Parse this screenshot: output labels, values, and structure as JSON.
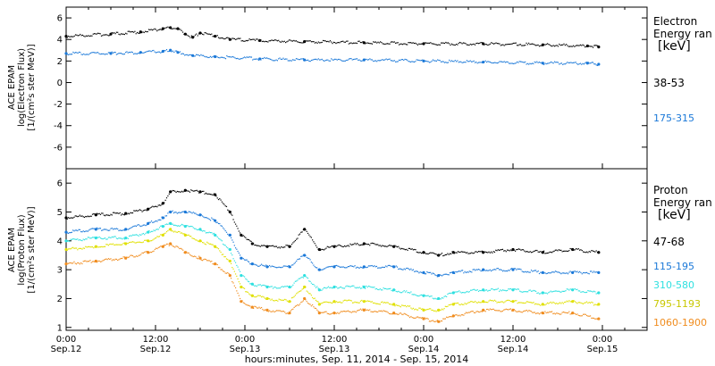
{
  "x_axis": {
    "title": "hours:minutes, Sep. 11, 2014 - Sep. 15, 2014",
    "ticks": [
      {
        "hour": 0,
        "time": "0:00",
        "date": "Sep.12"
      },
      {
        "hour": 12,
        "time": "12:00",
        "date": "Sep.12"
      },
      {
        "hour": 24,
        "time": "0:00",
        "date": "Sep.13"
      },
      {
        "hour": 36,
        "time": "12:00",
        "date": "Sep.13"
      },
      {
        "hour": 48,
        "time": "0:00",
        "date": "Sep.14"
      },
      {
        "hour": 60,
        "time": "12:00",
        "date": "Sep.14"
      },
      {
        "hour": 72,
        "time": "0:00",
        "date": "Sep.15"
      }
    ]
  },
  "panels": {
    "electron": {
      "ylabel_line1": "ACE EPAM",
      "ylabel_line2": "log(Electron Flux)",
      "ylabel_line3": "[1/(cm²s ster MeV)]",
      "legend_title_1": "Electron",
      "legend_title_2": "Energy ran",
      "legend_title_3": "[keV]"
    },
    "proton": {
      "ylabel_line1": "ACE EPAM",
      "ylabel_line2": "log(Proton Flux)",
      "ylabel_line3": "[1/(cm²s ster MeV)]",
      "legend_title_1": "Proton",
      "legend_title_2": "Energy ran",
      "legend_title_3": "[keV]"
    }
  },
  "chart_data": [
    {
      "type": "scatter",
      "panel": "electron",
      "xlim": [
        0,
        78
      ],
      "ylim": [
        -8,
        7
      ],
      "yticks": [
        -6,
        -4,
        -2,
        0,
        2,
        4,
        6
      ],
      "series": [
        {
          "name": "38-53",
          "color": "#000000",
          "x": [
            0,
            6,
            10,
            13,
            14,
            15,
            16,
            17,
            18,
            20,
            22,
            26,
            32,
            40,
            48,
            56,
            64,
            70,
            71.5
          ],
          "y": [
            4.3,
            4.5,
            4.7,
            5.0,
            5.1,
            5.0,
            4.5,
            4.2,
            4.6,
            4.3,
            4.0,
            3.9,
            3.8,
            3.7,
            3.6,
            3.6,
            3.5,
            3.4,
            3.3
          ]
        },
        {
          "name": "175-315",
          "color": "#1a78d8",
          "x": [
            0,
            6,
            10,
            13,
            14,
            15,
            17,
            20,
            26,
            32,
            40,
            48,
            56,
            64,
            70,
            71.5
          ],
          "y": [
            2.7,
            2.7,
            2.8,
            2.9,
            3.0,
            2.8,
            2.5,
            2.4,
            2.2,
            2.1,
            2.1,
            2.0,
            1.9,
            1.8,
            1.8,
            1.7
          ]
        }
      ]
    },
    {
      "type": "scatter",
      "panel": "proton",
      "xlim": [
        0,
        78
      ],
      "ylim": [
        0.9,
        6.5
      ],
      "yticks": [
        1,
        2,
        3,
        4,
        5,
        6
      ],
      "series": [
        {
          "name": "47-68",
          "color": "#000000",
          "x": [
            0,
            4,
            8,
            11,
            13,
            14,
            16,
            18,
            20,
            22,
            23.5,
            25,
            27,
            30,
            32,
            34,
            36,
            40,
            44,
            48,
            50,
            52,
            56,
            60,
            64,
            68,
            71.5
          ],
          "y": [
            4.8,
            4.9,
            4.95,
            5.1,
            5.3,
            5.7,
            5.75,
            5.7,
            5.6,
            5.0,
            4.2,
            3.9,
            3.8,
            3.8,
            4.4,
            3.7,
            3.8,
            3.9,
            3.8,
            3.6,
            3.5,
            3.6,
            3.6,
            3.7,
            3.6,
            3.7,
            3.6
          ]
        },
        {
          "name": "115-195",
          "color": "#1a78d8",
          "x": [
            0,
            4,
            8,
            11,
            13,
            14,
            16,
            18,
            20,
            22,
            23.5,
            25,
            27,
            30,
            32,
            34,
            36,
            40,
            44,
            48,
            50,
            52,
            56,
            60,
            64,
            68,
            71.5
          ],
          "y": [
            4.3,
            4.4,
            4.4,
            4.6,
            4.8,
            5.0,
            5.0,
            4.9,
            4.7,
            4.2,
            3.4,
            3.2,
            3.1,
            3.1,
            3.5,
            3.0,
            3.1,
            3.1,
            3.1,
            2.9,
            2.8,
            2.9,
            3.0,
            3.0,
            2.9,
            2.9,
            2.9
          ]
        },
        {
          "name": "310-580",
          "color": "#2ee0e0",
          "x": [
            0,
            4,
            8,
            11,
            13,
            14,
            16,
            18,
            20,
            22,
            23.5,
            25,
            27,
            30,
            32,
            34,
            36,
            40,
            44,
            48,
            50,
            52,
            56,
            60,
            64,
            68,
            71.5
          ],
          "y": [
            4.0,
            4.1,
            4.1,
            4.3,
            4.5,
            4.6,
            4.5,
            4.4,
            4.2,
            3.7,
            2.8,
            2.5,
            2.4,
            2.4,
            2.8,
            2.3,
            2.4,
            2.4,
            2.3,
            2.1,
            2.0,
            2.2,
            2.3,
            2.3,
            2.2,
            2.3,
            2.2
          ]
        },
        {
          "name": "795-1193",
          "color": "#e0e000",
          "x": [
            0,
            4,
            8,
            11,
            13,
            14,
            16,
            18,
            20,
            22,
            23.5,
            25,
            27,
            30,
            32,
            34,
            36,
            40,
            44,
            48,
            50,
            52,
            56,
            60,
            64,
            68,
            71.5
          ],
          "y": [
            3.7,
            3.8,
            3.9,
            4.0,
            4.2,
            4.4,
            4.2,
            4.0,
            3.8,
            3.3,
            2.4,
            2.1,
            2.0,
            1.9,
            2.4,
            1.8,
            1.9,
            1.9,
            1.8,
            1.6,
            1.6,
            1.8,
            1.9,
            1.9,
            1.8,
            1.9,
            1.8
          ]
        },
        {
          "name": "1060-1900",
          "color": "#f08c1e",
          "x": [
            0,
            4,
            8,
            11,
            13,
            14,
            16,
            18,
            20,
            22,
            23.5,
            25,
            27,
            30,
            32,
            34,
            36,
            40,
            44,
            48,
            50,
            52,
            56,
            60,
            64,
            68,
            71.5
          ],
          "y": [
            3.2,
            3.3,
            3.4,
            3.6,
            3.8,
            3.9,
            3.6,
            3.4,
            3.2,
            2.8,
            1.9,
            1.7,
            1.6,
            1.5,
            2.0,
            1.5,
            1.5,
            1.6,
            1.5,
            1.3,
            1.2,
            1.4,
            1.6,
            1.6,
            1.5,
            1.5,
            1.3
          ]
        }
      ]
    }
  ]
}
